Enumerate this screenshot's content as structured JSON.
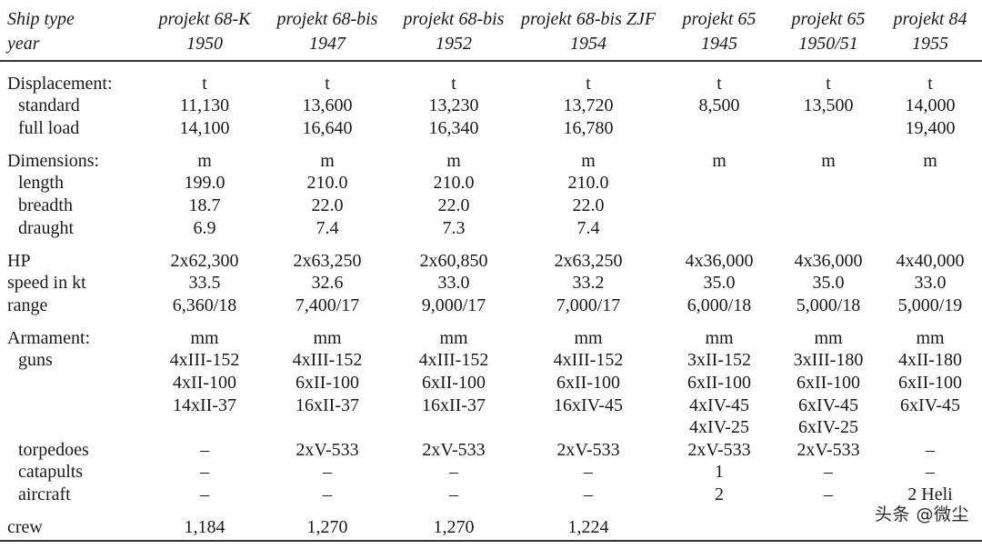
{
  "header": {
    "label_line1": "Ship type",
    "label_line2": "year",
    "columns": [
      {
        "name": "projekt 68-K",
        "year": "1950"
      },
      {
        "name": "projekt 68-bis",
        "year": "1947"
      },
      {
        "name": "projekt 68-bis",
        "year": "1952"
      },
      {
        "name": "projekt 68-bis ZJF",
        "year": "1954"
      },
      {
        "name": "projekt 65",
        "year": "1945"
      },
      {
        "name": "projekt 65",
        "year": "1950/51"
      },
      {
        "name": "projekt 84",
        "year": "1955"
      }
    ]
  },
  "rows": [
    {
      "label": "Displacement:",
      "sub": false,
      "gap": true,
      "values": [
        "t",
        "t",
        "t",
        "t",
        "t",
        "t",
        "t"
      ]
    },
    {
      "label": "standard",
      "sub": true,
      "gap": false,
      "values": [
        "11,130",
        "13,600",
        "13,230",
        "13,720",
        "8,500",
        "13,500",
        "14,000"
      ]
    },
    {
      "label": "full load",
      "sub": true,
      "gap": false,
      "values": [
        "14,100",
        "16,640",
        "16,340",
        "16,780",
        "",
        "",
        "19,400"
      ]
    },
    {
      "label": "Dimensions:",
      "sub": false,
      "gap": true,
      "values": [
        "m",
        "m",
        "m",
        "m",
        "m",
        "m",
        "m"
      ]
    },
    {
      "label": "length",
      "sub": true,
      "gap": false,
      "values": [
        "199.0",
        "210.0",
        "210.0",
        "210.0",
        "",
        "",
        ""
      ]
    },
    {
      "label": "breadth",
      "sub": true,
      "gap": false,
      "values": [
        "18.7",
        "22.0",
        "22.0",
        "22.0",
        "",
        "",
        ""
      ]
    },
    {
      "label": "draught",
      "sub": true,
      "gap": false,
      "values": [
        "6.9",
        "7.4",
        "7.3",
        "7.4",
        "",
        "",
        ""
      ]
    },
    {
      "label": "HP",
      "sub": false,
      "gap": true,
      "values": [
        "2x62,300",
        "2x63,250",
        "2x60,850",
        "2x63,250",
        "4x36,000",
        "4x36,000",
        "4x40,000"
      ]
    },
    {
      "label": "speed in kt",
      "sub": false,
      "gap": false,
      "values": [
        "33.5",
        "32.6",
        "33.0",
        "33.2",
        "35.0",
        "35.0",
        "33.0"
      ]
    },
    {
      "label": "range",
      "sub": false,
      "gap": false,
      "values": [
        "6,360/18",
        "7,400/17",
        "9,000/17",
        "7,000/17",
        "6,000/18",
        "5,000/18",
        "5,000/19"
      ]
    },
    {
      "label": "Armament:",
      "sub": false,
      "gap": true,
      "values": [
        "mm",
        "mm",
        "mm",
        "mm",
        "mm",
        "mm",
        "mm"
      ]
    },
    {
      "label": "guns",
      "sub": true,
      "gap": false,
      "values": [
        "4xIII-152",
        "4xIII-152",
        "4xIII-152",
        "4xIII-152",
        "3xII-152",
        "3xIII-180",
        "4xII-180"
      ]
    },
    {
      "label": "",
      "sub": true,
      "gap": false,
      "values": [
        "4xII-100",
        "6xII-100",
        "6xII-100",
        "6xII-100",
        "6xII-100",
        "6xII-100",
        "6xII-100"
      ]
    },
    {
      "label": "",
      "sub": true,
      "gap": false,
      "values": [
        "14xII-37",
        "16xII-37",
        "16xII-37",
        "16xIV-45",
        "4xIV-45",
        "6xIV-45",
        "6xIV-45"
      ]
    },
    {
      "label": "",
      "sub": true,
      "gap": false,
      "values": [
        "",
        "",
        "",
        "",
        "4xIV-25",
        "6xIV-25",
        ""
      ]
    },
    {
      "label": "torpedoes",
      "sub": true,
      "gap": false,
      "values": [
        "–",
        "2xV-533",
        "2xV-533",
        "2xV-533",
        "2xV-533",
        "2xV-533",
        "–"
      ]
    },
    {
      "label": "catapults",
      "sub": true,
      "gap": false,
      "values": [
        "–",
        "–",
        "–",
        "–",
        "1",
        "–",
        "–"
      ]
    },
    {
      "label": "aircraft",
      "sub": true,
      "gap": false,
      "values": [
        "–",
        "–",
        "–",
        "–",
        "2",
        "–",
        "2 Heli"
      ]
    },
    {
      "label": "crew",
      "sub": false,
      "gap": true,
      "values": [
        "1,184",
        "1,270",
        "1,270",
        "1,224",
        "",
        "",
        ""
      ]
    }
  ],
  "watermark": "头条 @微尘"
}
